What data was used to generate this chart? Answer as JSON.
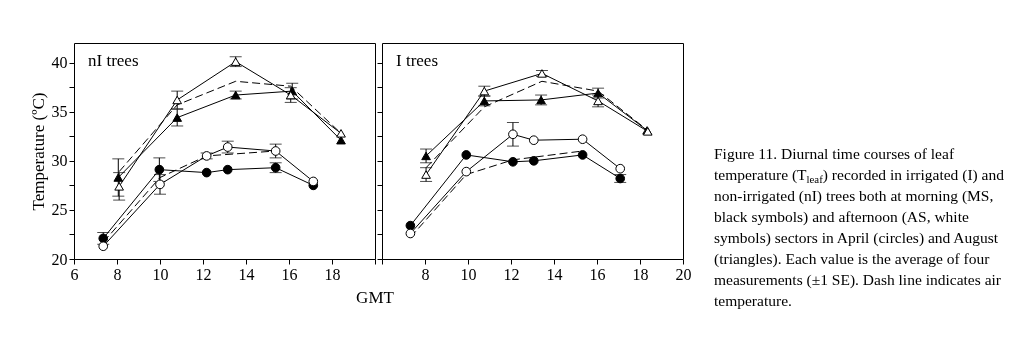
{
  "chart_data": [
    {
      "type": "line",
      "title": "nI trees",
      "xlabel": "GMT",
      "ylabel": "Temperature (ºC)",
      "xlim": [
        6,
        20
      ],
      "ylim": [
        20,
        42
      ],
      "xticks": [
        6,
        8,
        10,
        12,
        14,
        16,
        18,
        {
          "value": 20,
          "label": null
        }
      ],
      "yticks": [
        20,
        {
          "value": 22.5,
          "label": null
        },
        25,
        {
          "value": 27.5,
          "label": null
        },
        30,
        {
          "value": 32.5,
          "label": null
        },
        35,
        {
          "value": 37.5,
          "label": null
        },
        40
      ],
      "grid": false,
      "annotations": [
        "Figure 11. Diurnal time courses of leaf temperature (T$_{leaf}$) recorded in irrigated (I) and non-irrigated (nI) trees both at morning (MS, black symbols) and afternoon (AS, white symbols) sectors in April (circles) and August (triangles). Each value is the average of four measurements (±1 SE). Dash line indicates air temperature."
      ],
      "series": [
        {
          "color": "#000000",
          "marker": "circle",
          "line_style": "solid",
          "x": [
            7.36,
            9.97,
            12.17,
            13.15,
            15.38,
            17.13
          ],
          "values": [
            22.1,
            29.1,
            28.8,
            29.1,
            29.3,
            27.5
          ],
          "errors": [
            0.6,
            1.2,
            null,
            null,
            0.5,
            null
          ]
        },
        {
          "color": "#ffffff",
          "marker": "circle",
          "line_style": "solid",
          "x": [
            7.36,
            10.0,
            12.17,
            13.15,
            15.38,
            17.13
          ],
          "values": [
            21.3,
            27.6,
            30.5,
            31.4,
            31.0,
            27.9
          ],
          "errors": [
            null,
            1.0,
            0.3,
            0.6,
            0.7,
            null
          ]
        },
        {
          "color": "#000000",
          "marker": "none",
          "line_style": "dashed",
          "x": [
            7.36,
            10.0,
            12.17,
            15.38
          ],
          "values": [
            21.7,
            28.3,
            30.5,
            31.0
          ]
        },
        {
          "color": "#000000",
          "marker": "triangle",
          "line_style": "solid",
          "x": [
            8.06,
            10.8,
            13.52,
            16.15,
            18.42
          ],
          "values": [
            28.3,
            34.4,
            36.7,
            37.1,
            32.1
          ],
          "errors": [
            1.9,
            0.85,
            0.4,
            0.8,
            null
          ]
        },
        {
          "color": "#ffffff",
          "marker": "triangle",
          "line_style": "solid",
          "x": [
            8.1,
            10.8,
            13.52,
            16.08,
            18.42
          ],
          "values": [
            27.4,
            36.2,
            40.1,
            36.7,
            32.8
          ],
          "errors": [
            1.4,
            0.9,
            0.5,
            0.75,
            null
          ]
        },
        {
          "color": "#000000",
          "marker": "none",
          "line_style": "dashed",
          "x": [
            8.1,
            10.8,
            13.52,
            16.08,
            18.42
          ],
          "values": [
            28.9,
            35.7,
            38.1,
            37.6,
            32.8
          ]
        }
      ]
    },
    {
      "type": "line",
      "title": "I trees",
      "xlim": [
        6,
        20
      ],
      "ylim": [
        20,
        42
      ],
      "xticks": [
        {
          "value": 6,
          "label": null
        },
        8,
        10,
        12,
        14,
        16,
        18,
        20
      ],
      "yticks": [
        20,
        {
          "value": 22.5,
          "label": null
        },
        25,
        {
          "value": 27.5,
          "label": null
        },
        30,
        {
          "value": 32.5,
          "label": null
        },
        35,
        {
          "value": 37.5,
          "label": null
        },
        40
      ],
      "tick_labels": "x",
      "grid": false,
      "series": [
        {
          "color": "#000000",
          "marker": "circle",
          "line_style": "solid",
          "x": [
            7.32,
            9.92,
            12.09,
            13.06,
            15.33,
            17.08
          ],
          "values": [
            23.4,
            30.6,
            29.9,
            30.0,
            30.6,
            28.2
          ],
          "errors": [
            null,
            null,
            null,
            null,
            null,
            0.4
          ]
        },
        {
          "color": "#ffffff",
          "marker": "circle",
          "line_style": "solid",
          "x": [
            7.32,
            9.92,
            12.09,
            13.06,
            15.33,
            17.08
          ],
          "values": [
            22.6,
            28.9,
            32.7,
            32.1,
            32.2,
            29.2
          ],
          "errors": [
            null,
            null,
            1.2,
            null,
            null,
            null
          ]
        },
        {
          "color": "#000000",
          "marker": "none",
          "line_style": "dashed",
          "x": [
            7.32,
            9.92,
            12.09,
            15.33
          ],
          "values": [
            22.2,
            28.6,
            30.1,
            31.0
          ]
        },
        {
          "color": "#000000",
          "marker": "triangle",
          "line_style": "solid",
          "x": [
            8.05,
            10.76,
            13.4,
            16.05,
            18.33
          ],
          "values": [
            30.5,
            36.1,
            36.2,
            36.9,
            33.1
          ],
          "errors": [
            0.7,
            0.5,
            0.5,
            0.5,
            null
          ]
        },
        {
          "color": "#ffffff",
          "marker": "triangle",
          "line_style": "solid",
          "x": [
            8.05,
            10.76,
            13.44,
            16.05,
            18.36
          ],
          "values": [
            28.6,
            37.1,
            38.9,
            36.1,
            33.0
          ],
          "errors": [
            0.7,
            0.5,
            0.3,
            0.6,
            null
          ]
        },
        {
          "color": "#000000",
          "marker": "none",
          "line_style": "dashed",
          "x": [
            8.05,
            10.76,
            13.44,
            16.05,
            18.36
          ],
          "values": [
            29.3,
            35.5,
            38.1,
            37.1,
            33.1
          ]
        }
      ]
    }
  ]
}
